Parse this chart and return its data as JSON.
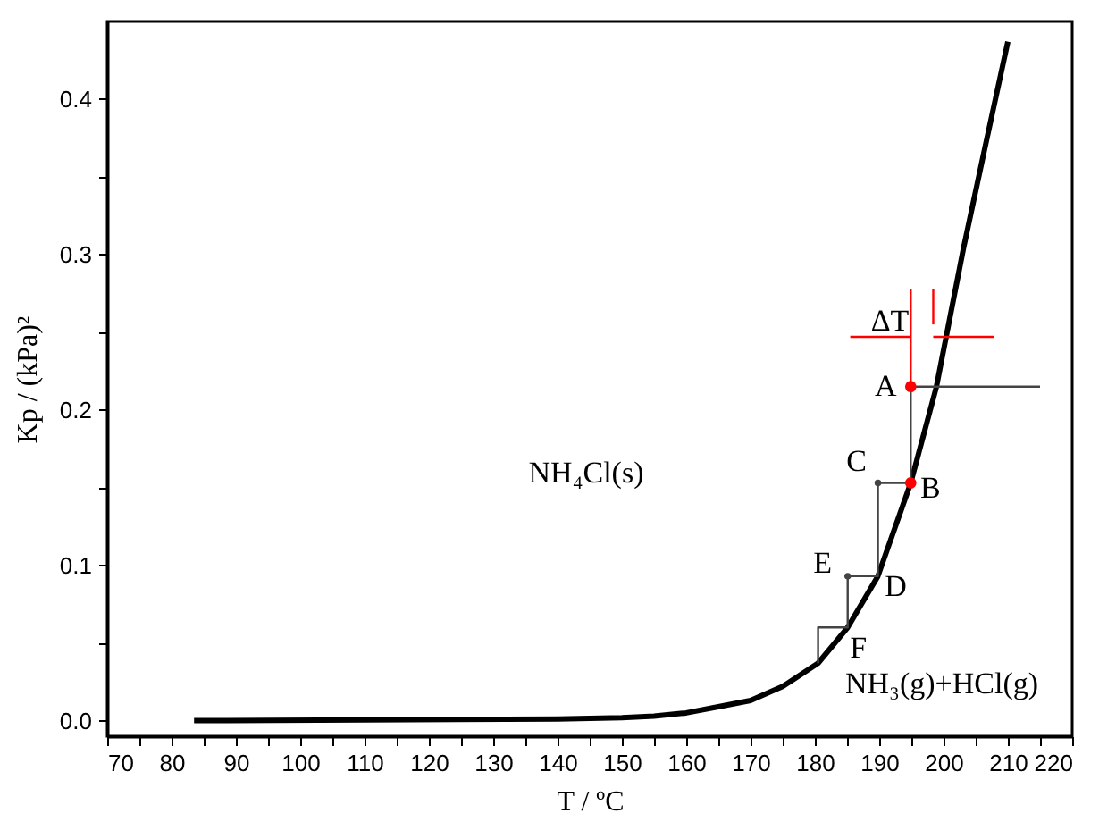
{
  "chart_data": {
    "type": "line",
    "xlabel": "T / ºC",
    "ylabel": "Kp / (kPa)²",
    "xlim": [
      70,
      220
    ],
    "ylim": [
      -0.01,
      0.45
    ],
    "xticks": [
      70,
      {
        "value": 75,
        "label": null
      },
      80,
      {
        "value": 85,
        "label": null
      },
      90,
      {
        "value": 95,
        "label": null
      },
      100,
      {
        "value": 105,
        "label": null
      },
      110,
      {
        "value": 115,
        "label": null
      },
      120,
      {
        "value": 125,
        "label": null
      },
      130,
      {
        "value": 135,
        "label": null
      },
      140,
      {
        "value": 145,
        "label": null
      },
      150,
      {
        "value": 155,
        "label": null
      },
      160,
      {
        "value": 165,
        "label": null
      },
      170,
      {
        "value": 175,
        "label": null
      },
      180,
      {
        "value": 185,
        "label": null
      },
      190,
      {
        "value": 195,
        "label": null
      },
      200,
      {
        "value": 205,
        "label": null
      },
      210,
      {
        "value": 215,
        "label": null
      },
      220
    ],
    "yticks": [
      {
        "value": 0,
        "label": "0.0"
      },
      {
        "value": 0.05,
        "label": null
      },
      0.1,
      {
        "value": 0.15,
        "label": null
      },
      0.2,
      {
        "value": 0.25,
        "label": null
      },
      0.3,
      {
        "value": 0.35,
        "label": null
      },
      0.4
    ],
    "grid": false,
    "line_style": "solid",
    "series": [
      {
        "color": "#000000",
        "x": [
          83.5,
          140,
          150,
          155,
          160,
          165,
          170,
          175,
          180.5,
          185.1,
          189.8,
          194.9,
          198.9,
          203.1,
          206.5,
          210
        ],
        "values": [
          0,
          0.001,
          0.002,
          0.003,
          0.005,
          0.009,
          0.013,
          0.022,
          0.037,
          0.06,
          0.093,
          0.153,
          0.215,
          0.304,
          0.37,
          0.437
        ]
      },
      {
        "color": "#444444",
        "x": [
          215,
          194.9,
          194.9,
          189.8,
          189.8,
          185.1,
          185.1,
          180.5,
          180.5
        ],
        "values": [
          0.215,
          0.215,
          0.153,
          0.153,
          0.093,
          0.093,
          0.06,
          0.06,
          0.037
        ]
      },
      {
        "color": "#ff0000",
        "x": [
          194.9,
          194.9
        ],
        "values": [
          0.215,
          0.278
        ]
      },
      {
        "color": "#ff0000",
        "x": [
          198.4,
          198.4
        ],
        "values": [
          0.255,
          0.278
        ]
      },
      {
        "color": "#ff0000",
        "x": [
          185.5,
          194.9
        ],
        "values": [
          0.247,
          0.247
        ]
      },
      {
        "color": "#ff0000",
        "x": [
          207.8,
          198.4
        ],
        "values": [
          0.247,
          0.247
        ]
      },
      {
        "type": "scatter",
        "color": "#ff0000",
        "marker": "circle",
        "x": [
          194.9,
          194.9
        ],
        "values": [
          0.215,
          0.153
        ]
      },
      {
        "type": "scatter",
        "color": "#444444",
        "marker": "circle",
        "x": [
          189.8,
          185.1
        ],
        "values": [
          0.153,
          0.093
        ]
      }
    ],
    "annotations": [
      "ΔT",
      {
        "text": "A",
        "x": 194.9,
        "y": 0.215
      },
      {
        "text": "B",
        "x": 194.9,
        "y": 0.153
      },
      {
        "text": "C",
        "x": 189.8,
        "y": 0.153
      },
      {
        "text": "D",
        "x": 189.8,
        "y": 0.093
      },
      {
        "text": "E",
        "x": 185.1,
        "y": 0.093
      },
      {
        "text": "F",
        "x": 185.1,
        "y": 0.06
      },
      "NH₄Cl(s)",
      "NH₃(g)+HCl(g)"
    ]
  }
}
